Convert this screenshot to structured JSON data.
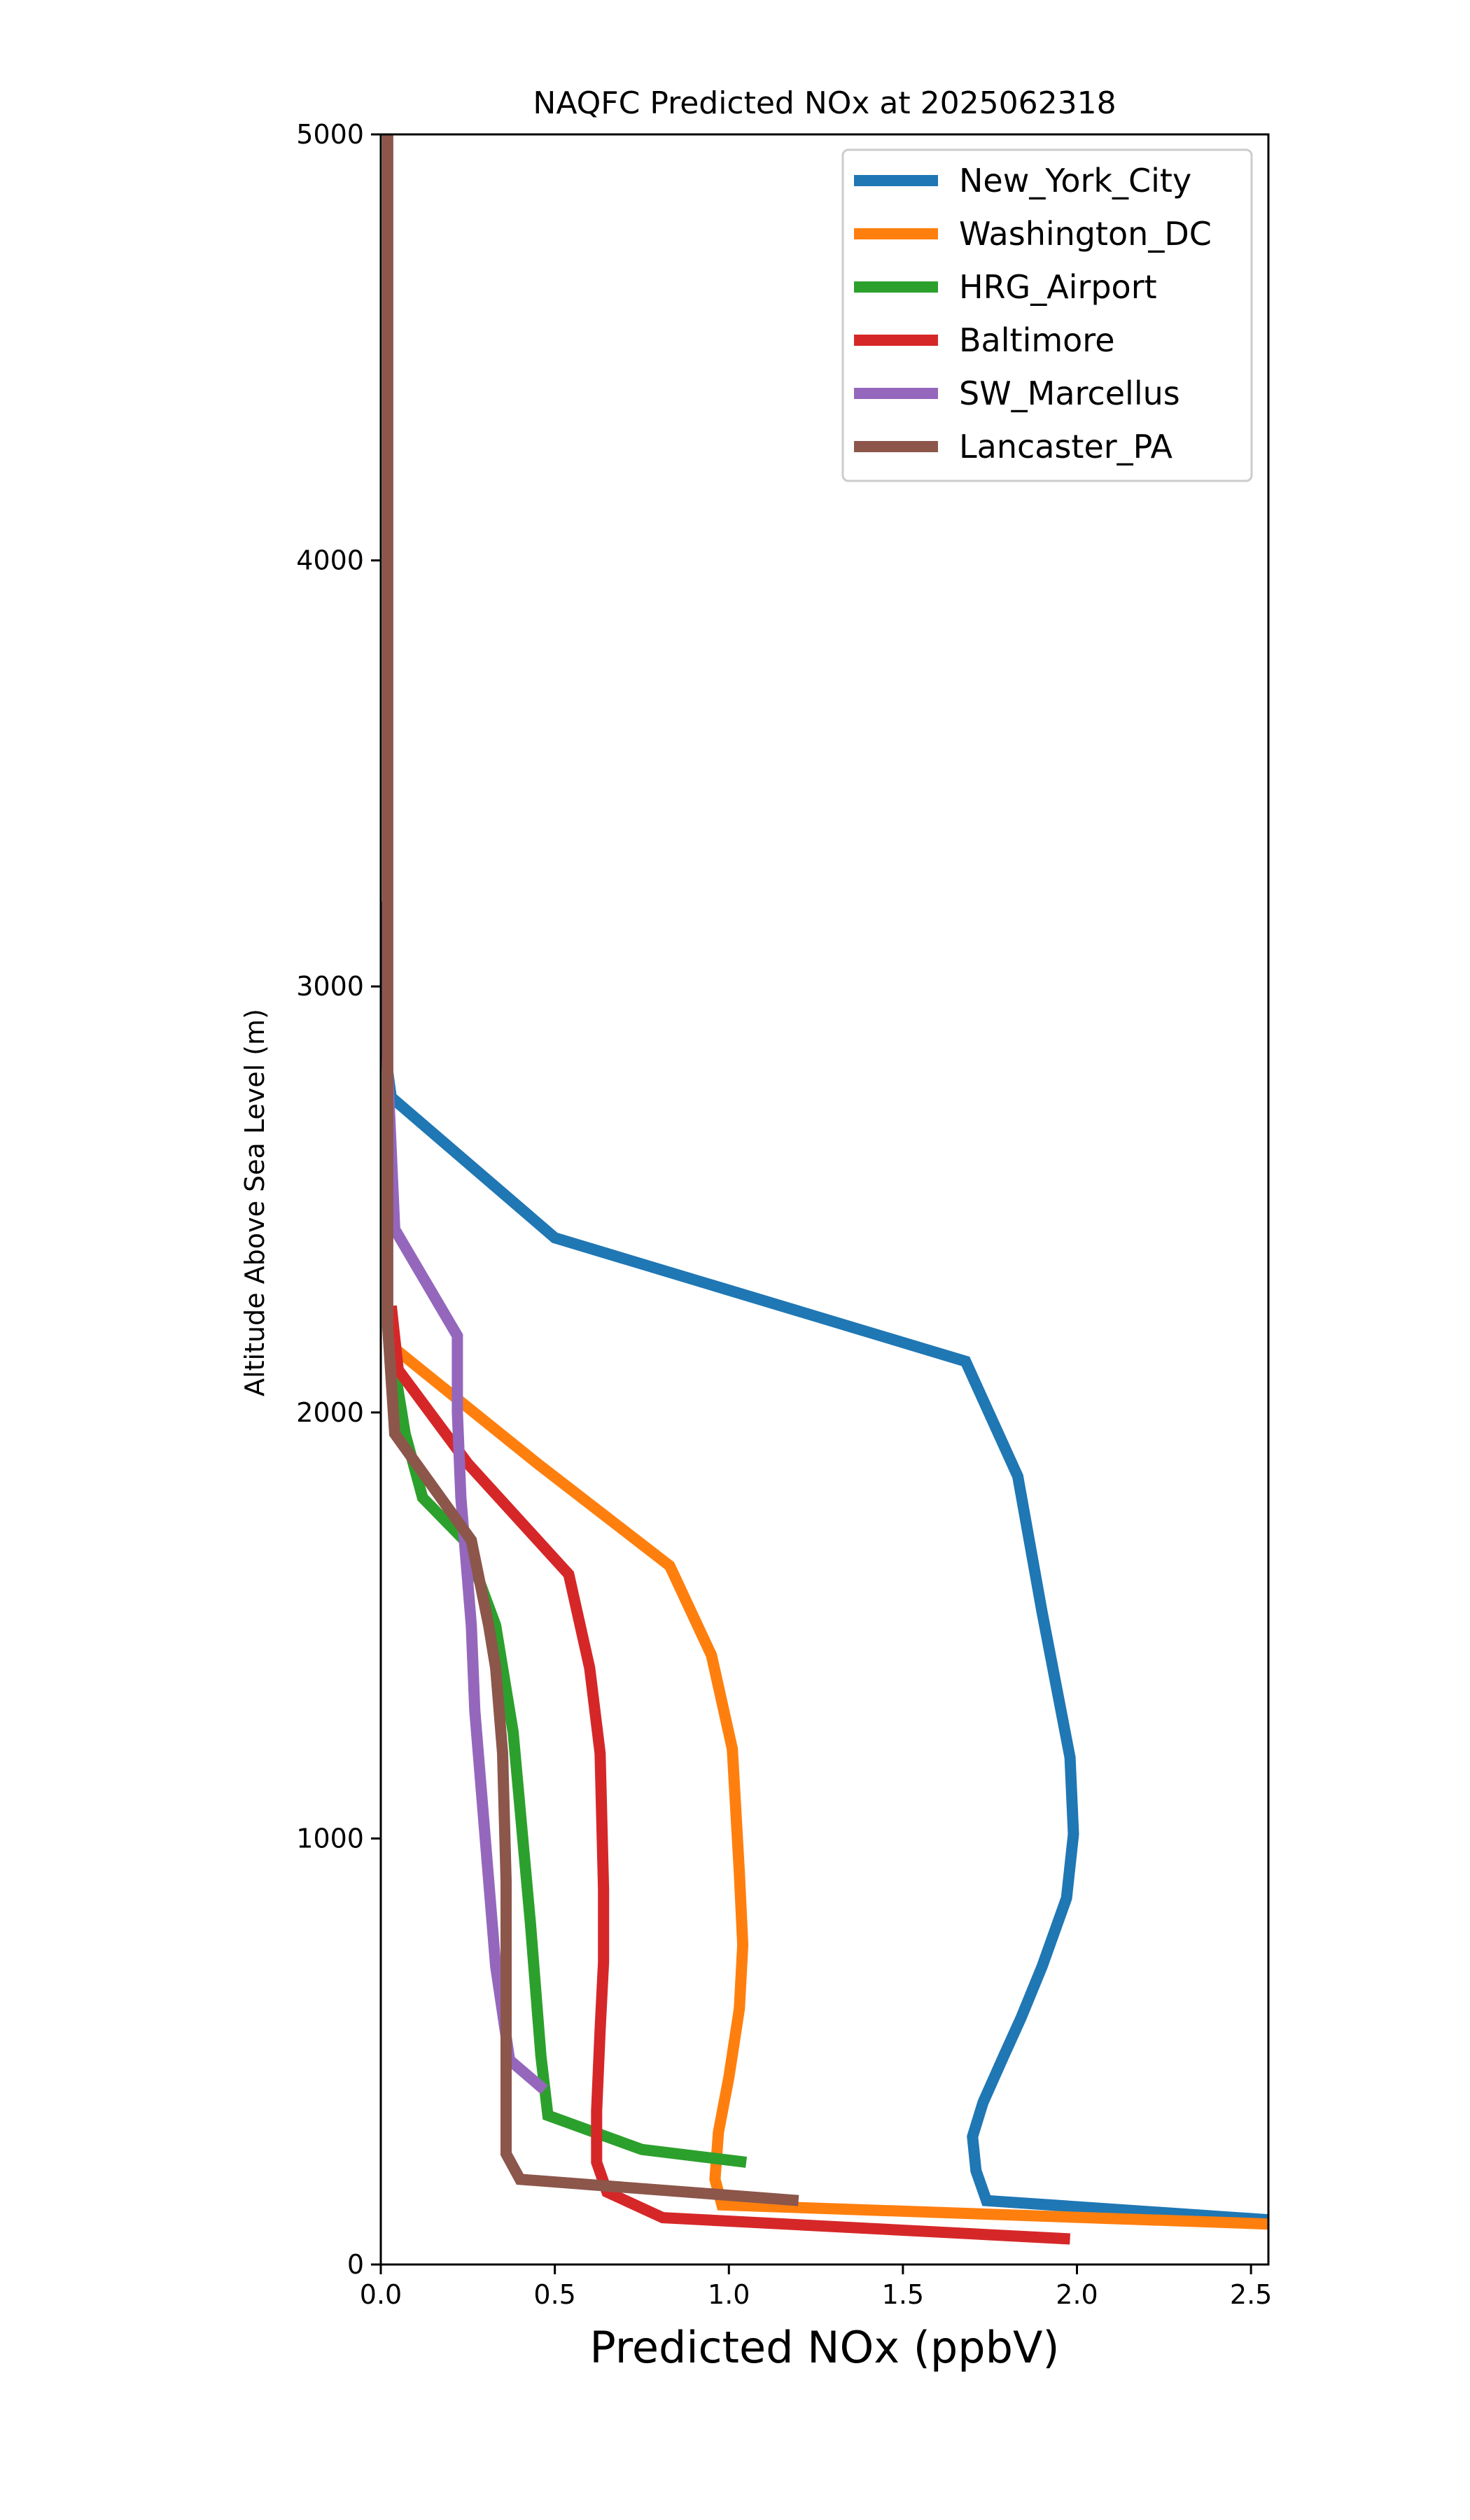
{
  "chart_data": {
    "type": "line",
    "title": "NAQFC Predicted NOx at 2025062318",
    "xlabel": "Predicted NOx (ppbV)",
    "ylabel": "Altitude Above Sea Level (m)",
    "xlim": [
      0.0,
      2.55
    ],
    "ylim": [
      0,
      5000
    ],
    "x_ticks": [
      "0.0",
      "0.5",
      "1.0",
      "1.5",
      "2.0",
      "2.5"
    ],
    "y_ticks": [
      "0",
      "1000",
      "2000",
      "3000",
      "4000",
      "5000"
    ],
    "grid": false,
    "legend_position": "top-right",
    "series": [
      {
        "name": "New_York_City",
        "color": "#1f77b4",
        "points": [
          [
            2.55,
            105
          ],
          [
            1.74,
            150
          ],
          [
            1.71,
            220
          ],
          [
            1.7,
            300
          ],
          [
            1.73,
            380
          ],
          [
            1.79,
            490
          ],
          [
            1.84,
            580
          ],
          [
            1.9,
            700
          ],
          [
            1.97,
            860
          ],
          [
            1.99,
            1010
          ],
          [
            1.98,
            1190
          ],
          [
            1.9,
            1530
          ],
          [
            1.83,
            1850
          ],
          [
            1.68,
            2120
          ],
          [
            0.5,
            2410
          ],
          [
            0.03,
            2740
          ],
          [
            0.02,
            2800
          ]
        ]
      },
      {
        "name": "Washington_DC",
        "color": "#ff7f0e",
        "points": [
          [
            2.55,
            95
          ],
          [
            0.98,
            140
          ],
          [
            0.96,
            200
          ],
          [
            0.97,
            310
          ],
          [
            1.0,
            440
          ],
          [
            1.03,
            600
          ],
          [
            1.04,
            750
          ],
          [
            1.03,
            920
          ],
          [
            1.01,
            1210
          ],
          [
            0.95,
            1430
          ],
          [
            0.83,
            1640
          ],
          [
            0.45,
            1880
          ],
          [
            0.04,
            2150
          ],
          [
            0.02,
            2250
          ]
        ]
      },
      {
        "name": "HRG_Airport",
        "color": "#2ca02c",
        "points": [
          [
            1.05,
            240
          ],
          [
            0.75,
            270
          ],
          [
            0.48,
            350
          ],
          [
            0.46,
            490
          ],
          [
            0.43,
            800
          ],
          [
            0.38,
            1250
          ],
          [
            0.33,
            1500
          ],
          [
            0.24,
            1700
          ],
          [
            0.12,
            1800
          ],
          [
            0.07,
            1950
          ],
          [
            0.05,
            2050
          ],
          [
            0.03,
            2150
          ]
        ]
      },
      {
        "name": "Baltimore",
        "color": "#d62728",
        "points": [
          [
            1.98,
            60
          ],
          [
            0.81,
            110
          ],
          [
            0.65,
            170
          ],
          [
            0.62,
            240
          ],
          [
            0.62,
            360
          ],
          [
            0.63,
            550
          ],
          [
            0.64,
            710
          ],
          [
            0.64,
            880
          ],
          [
            0.63,
            1200
          ],
          [
            0.6,
            1400
          ],
          [
            0.54,
            1620
          ],
          [
            0.25,
            1880
          ],
          [
            0.05,
            2100
          ],
          [
            0.03,
            2250
          ]
        ]
      },
      {
        "name": "SW_Marcellus",
        "color": "#9467bd",
        "points": [
          [
            0.47,
            410
          ],
          [
            0.37,
            480
          ],
          [
            0.33,
            700
          ],
          [
            0.3,
            1000
          ],
          [
            0.27,
            1300
          ],
          [
            0.26,
            1500
          ],
          [
            0.23,
            1800
          ],
          [
            0.22,
            2000
          ],
          [
            0.22,
            2180
          ],
          [
            0.04,
            2430
          ],
          [
            0.02,
            2800
          ],
          [
            0.01,
            3200
          ]
        ]
      },
      {
        "name": "Lancaster_PA",
        "color": "#8c564b",
        "points": [
          [
            1.2,
            150
          ],
          [
            0.4,
            200
          ],
          [
            0.36,
            260
          ],
          [
            0.36,
            500
          ],
          [
            0.36,
            900
          ],
          [
            0.35,
            1200
          ],
          [
            0.33,
            1400
          ],
          [
            0.31,
            1500
          ],
          [
            0.26,
            1700
          ],
          [
            0.04,
            1950
          ],
          [
            0.02,
            2200
          ],
          [
            0.02,
            3000
          ],
          [
            0.02,
            4000
          ],
          [
            0.02,
            4800
          ],
          [
            0.02,
            5000
          ]
        ]
      }
    ]
  }
}
